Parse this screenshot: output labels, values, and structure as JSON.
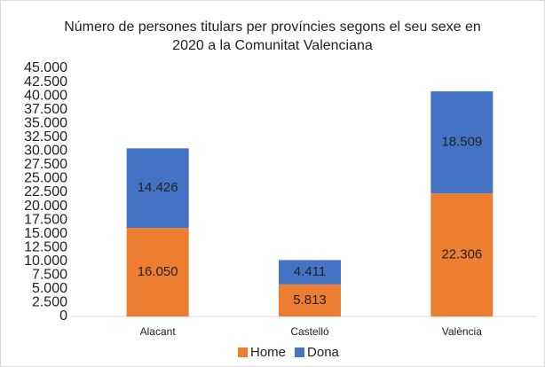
{
  "chart_data": {
    "type": "stacked_bar",
    "title": "Número de persones titulars per províncies segons el seu sexe en 2020 a la Comunitat Valenciana",
    "categories": [
      "Alacant",
      "Castelló",
      "València"
    ],
    "series": [
      {
        "name": "Home",
        "color": "#ED7D31",
        "values": [
          16050,
          5813,
          22306
        ],
        "value_labels": [
          "16.050",
          "5.813",
          "22.306"
        ]
      },
      {
        "name": "Dona",
        "color": "#4472C4",
        "values": [
          14426,
          4411,
          18509
        ],
        "value_labels": [
          "14.426",
          "4.411",
          "18.509"
        ]
      }
    ],
    "ylim": [
      0,
      45000
    ],
    "yticks": [
      0,
      {
        "value": 2500,
        "label": "2.500"
      },
      {
        "value": 5000,
        "label": "5.000"
      },
      {
        "value": 7500,
        "label": "7.500"
      },
      {
        "value": 10000,
        "label": "10.000"
      },
      {
        "value": 12500,
        "label": "12.500"
      },
      {
        "value": 15000,
        "label": "15.000"
      },
      {
        "value": 17500,
        "label": "17.500"
      },
      {
        "value": 20000,
        "label": "20.000"
      },
      {
        "value": 22500,
        "label": "22.500"
      },
      {
        "value": 25000,
        "label": "25.000"
      },
      {
        "value": 27500,
        "label": "27.500"
      },
      {
        "value": 30000,
        "label": "30.000"
      },
      {
        "value": 32500,
        "label": "32.500"
      },
      {
        "value": 35000,
        "label": "35.000"
      },
      {
        "value": 37500,
        "label": "37.500"
      },
      {
        "value": 40000,
        "label": "40.000"
      },
      {
        "value": 42500,
        "label": "42.500"
      },
      {
        "value": 45000,
        "label": "45.000"
      }
    ],
    "legend": "bottom"
  }
}
